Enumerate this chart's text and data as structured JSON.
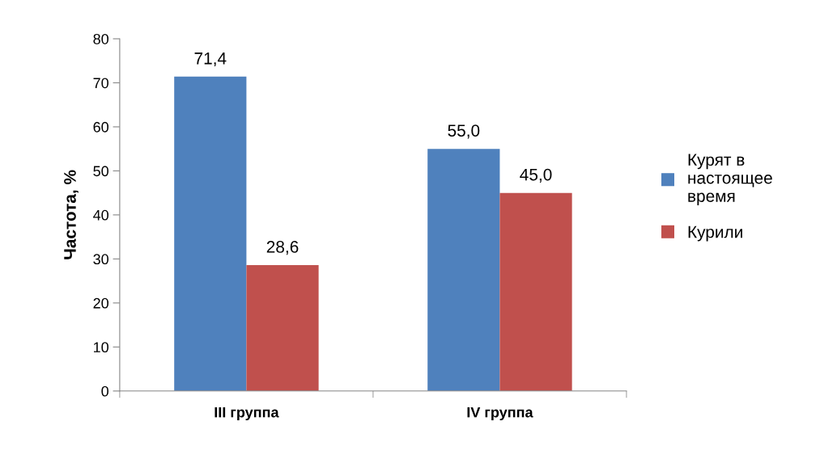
{
  "chart_data": {
    "type": "bar",
    "ylabel": "Частота, %",
    "categories": [
      "III группа",
      "IV группа"
    ],
    "series": [
      {
        "name": "Курят в настоящее время",
        "color": "#4f81bd",
        "values": [
          71.4,
          55.0
        ],
        "value_labels": [
          "71,4",
          "55,0"
        ]
      },
      {
        "name": "Курили",
        "color": "#c0504d",
        "values": [
          28.6,
          45.0
        ],
        "value_labels": [
          "28,6",
          "45,0"
        ]
      }
    ],
    "ylim": [
      0,
      80
    ],
    "yticks": [
      0,
      10,
      20,
      30,
      40,
      50,
      60,
      70,
      80
    ],
    "grid": false,
    "legend": "right"
  }
}
